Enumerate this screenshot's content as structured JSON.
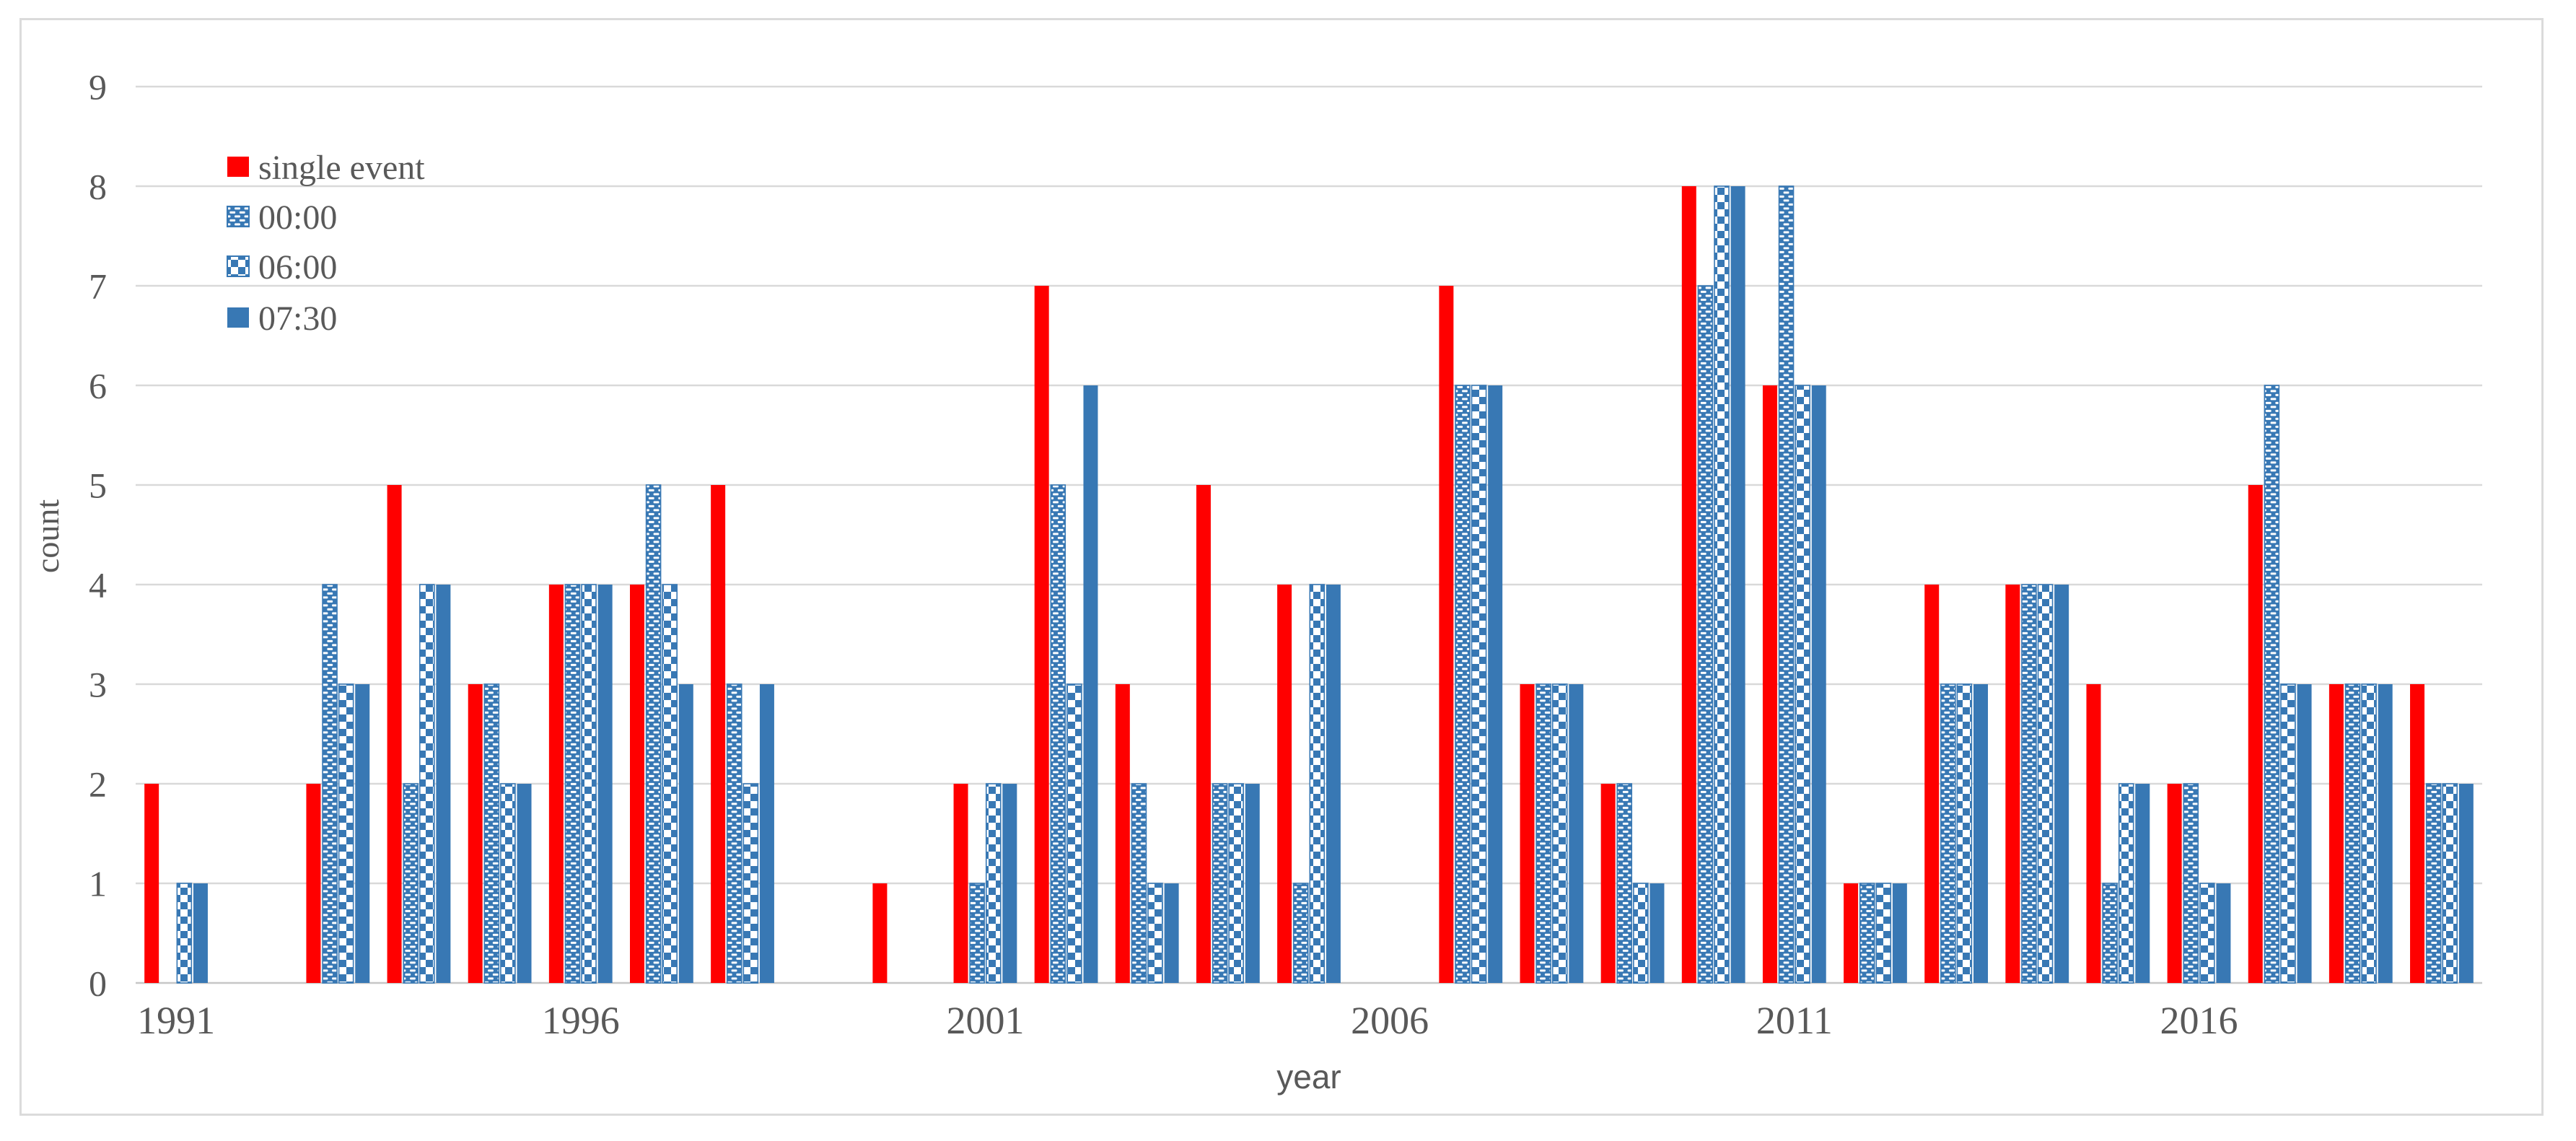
{
  "chart_data": {
    "type": "bar",
    "title": "",
    "xlabel": "year",
    "ylabel": "count",
    "ylim": [
      0,
      9
    ],
    "ytick_step": 1,
    "yticks": [
      "0",
      "1",
      "2",
      "3",
      "4",
      "5",
      "6",
      "7",
      "8",
      "9"
    ],
    "grid": true,
    "legend_position": "top-left-inside",
    "categories": [
      "1991",
      "1992",
      "1993",
      "1994",
      "1995",
      "1996",
      "1997",
      "1998",
      "1999",
      "2000",
      "2001",
      "2002",
      "2003",
      "2004",
      "2005",
      "2006",
      "2007",
      "2008",
      "2009",
      "2010",
      "2011",
      "2012",
      "2013",
      "2014",
      "2015",
      "2016",
      "2017",
      "2018",
      "2019"
    ],
    "x_axis_labels_shown": [
      "1991",
      "1996",
      "2001",
      "2006",
      "2011",
      "2016"
    ],
    "series": [
      {
        "name": "single event",
        "style": "solid",
        "color": "#FF0000",
        "values": [
          2,
          0,
          2,
          5,
          3,
          4,
          4,
          5,
          0,
          1,
          2,
          7,
          3,
          5,
          4,
          0,
          7,
          3,
          2,
          8,
          6,
          1,
          4,
          4,
          3,
          2,
          5,
          3,
          3
        ]
      },
      {
        "name": "00:00",
        "style": "brick",
        "color": "#3878B4",
        "values": [
          0,
          0,
          4,
          2,
          3,
          4,
          5,
          3,
          0,
          0,
          1,
          5,
          2,
          2,
          1,
          0,
          6,
          3,
          2,
          7,
          8,
          1,
          3,
          4,
          1,
          2,
          6,
          3,
          2
        ]
      },
      {
        "name": "06:00",
        "style": "checker",
        "color": "#3878B4",
        "values": [
          1,
          0,
          3,
          4,
          2,
          4,
          4,
          2,
          0,
          0,
          2,
          3,
          1,
          2,
          4,
          0,
          6,
          3,
          1,
          8,
          6,
          1,
          3,
          4,
          2,
          1,
          3,
          3,
          2
        ]
      },
      {
        "name": "07:30",
        "style": "solid",
        "color": "#3878B4",
        "values": [
          1,
          0,
          3,
          4,
          2,
          4,
          3,
          3,
          0,
          0,
          2,
          6,
          1,
          2,
          4,
          0,
          6,
          3,
          1,
          8,
          6,
          1,
          3,
          4,
          2,
          1,
          3,
          3,
          2
        ]
      }
    ],
    "colors": {
      "grid": "#D9D9D9",
      "baseline": "#C6C6C6",
      "frame": "#DBDBDB",
      "axis_text": "#595959",
      "pattern_background": "#FFFFFF"
    }
  }
}
